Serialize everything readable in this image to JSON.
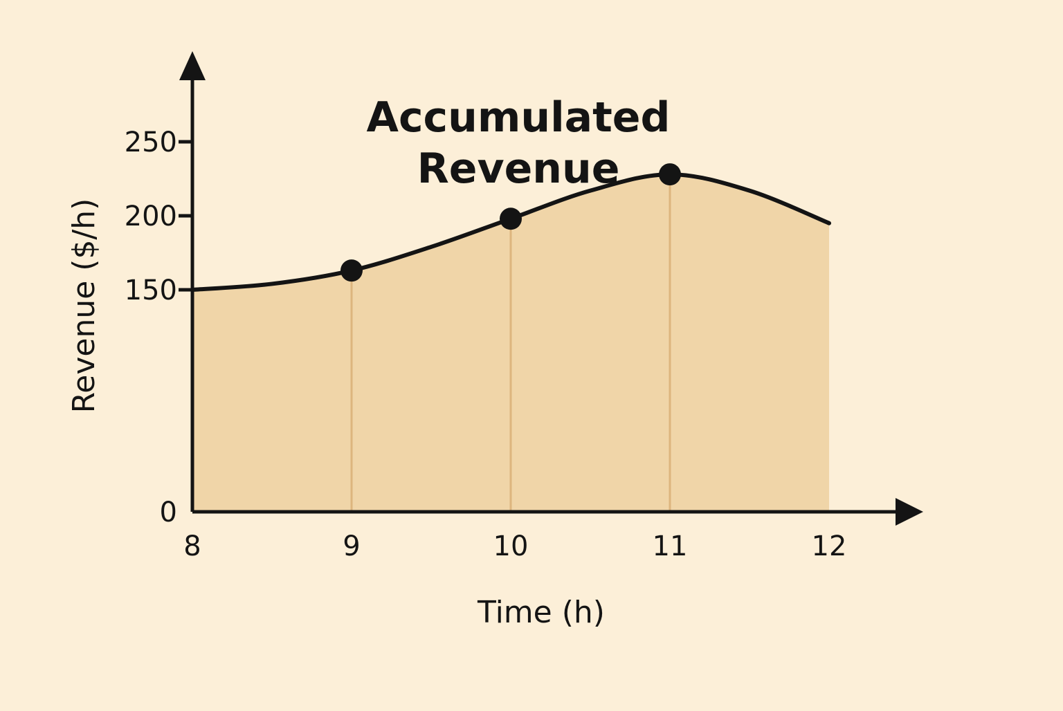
{
  "colors": {
    "background": "#fcefd8",
    "area_fill": "#f0d5a8",
    "line": "#141414",
    "drop_line": "#ddb57e",
    "point": "#141414",
    "axis": "#141414"
  },
  "chart_data": {
    "type": "area",
    "title_lines": [
      "Accumulated",
      "Revenue"
    ],
    "xlabel": "Time (h)",
    "ylabel": "Revenue ($/h)",
    "xlim": [
      8,
      12
    ],
    "ylim": [
      0,
      250
    ],
    "x_ticks": [
      8,
      9,
      10,
      11,
      12
    ],
    "y_ticks": [
      0,
      150,
      200,
      250
    ],
    "grid": false,
    "legend": "none",
    "curve": {
      "x": [
        8,
        8.5,
        9,
        9.5,
        10,
        10.5,
        11,
        11.5,
        12
      ],
      "y": [
        150,
        154,
        163,
        179,
        198,
        217,
        228,
        217,
        195
      ]
    },
    "highlighted_points": [
      {
        "x": 9,
        "y": 163
      },
      {
        "x": 10,
        "y": 198
      },
      {
        "x": 11,
        "y": 228
      }
    ]
  }
}
